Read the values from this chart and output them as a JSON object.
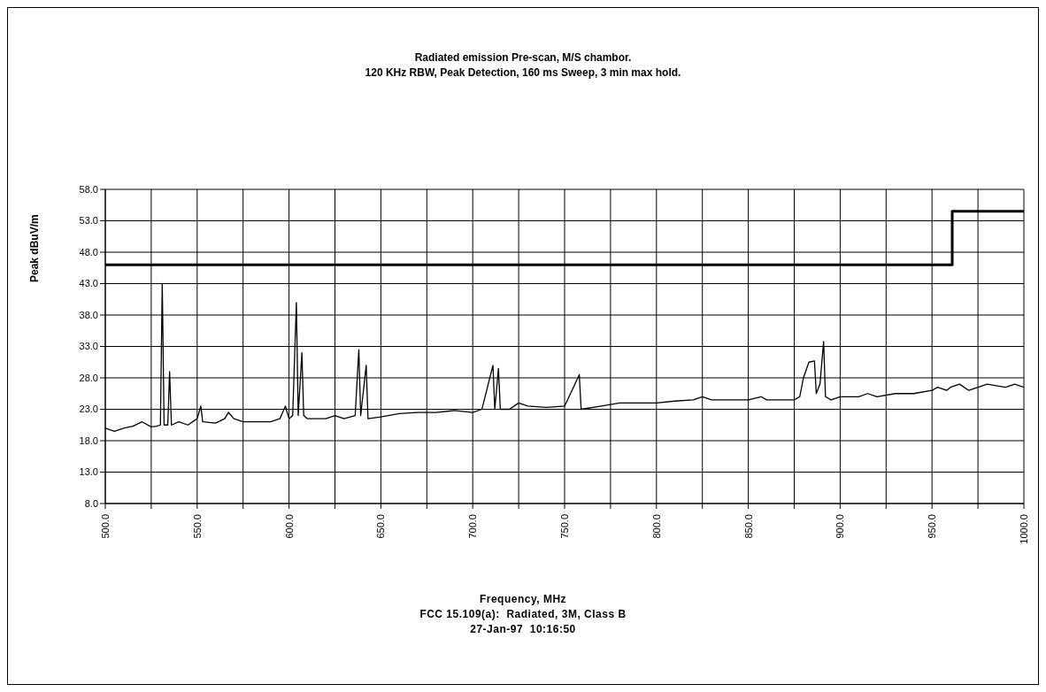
{
  "chart_data": {
    "type": "line",
    "title": "Radiated emission Pre-scan, M/S chambor.",
    "subtitle": "120 KHz RBW, Peak Detection, 160 ms Sweep, 3 min max hold.",
    "xlabel": "Frequency, MHz",
    "ylabel": "Peak dBuV/m",
    "annotations": [
      "FCC 15.109(a):  Radiated, 3M, Class B",
      "27-Jan-97  10:16:50"
    ],
    "xlim": [
      500,
      1000
    ],
    "xticks": [
      {
        "value": 500,
        "label": "500.0"
      },
      {
        "value": 525,
        "label": null
      },
      {
        "value": 550,
        "label": "550.0"
      },
      {
        "value": 575,
        "label": null
      },
      {
        "value": 600,
        "label": "600.0"
      },
      {
        "value": 625,
        "label": null
      },
      {
        "value": 650,
        "label": "650.0"
      },
      {
        "value": 675,
        "label": null
      },
      {
        "value": 700,
        "label": "700.0"
      },
      {
        "value": 725,
        "label": null
      },
      {
        "value": 750,
        "label": "750.0"
      },
      {
        "value": 775,
        "label": null
      },
      {
        "value": 800,
        "label": "800.0"
      },
      {
        "value": 825,
        "label": null
      },
      {
        "value": 850,
        "label": "850.0"
      },
      {
        "value": 875,
        "label": null
      },
      {
        "value": 900,
        "label": "900.0"
      },
      {
        "value": 925,
        "label": null
      },
      {
        "value": 950,
        "label": "950.0"
      },
      {
        "value": 975,
        "label": null
      },
      {
        "value": 1000,
        "label": "1000.0"
      }
    ],
    "ylim": [
      8,
      58
    ],
    "yticks": [
      {
        "value": 8,
        "label": "8.0"
      },
      {
        "value": 13,
        "label": "13.0"
      },
      {
        "value": 18,
        "label": "18.0"
      },
      {
        "value": 23,
        "label": "23.0"
      },
      {
        "value": 28,
        "label": "28.0"
      },
      {
        "value": 33,
        "label": "33.0"
      },
      {
        "value": 38,
        "label": "38.0"
      },
      {
        "value": 43,
        "label": "43.0"
      },
      {
        "value": 48,
        "label": "48.0"
      },
      {
        "value": 53,
        "label": "53.0"
      },
      {
        "value": 58,
        "label": "58.0"
      }
    ],
    "grid": true,
    "marker": "none",
    "line_style": "solid",
    "series": [
      {
        "color": "#000000",
        "x": [
          500,
          505,
          510,
          515,
          520,
          525,
          528,
          530,
          531,
          532,
          534,
          535,
          536,
          540,
          545,
          550,
          552,
          553,
          560,
          565,
          567,
          570,
          575,
          580,
          590,
          595,
          598,
          600,
          602,
          604,
          605,
          607,
          608,
          610,
          620,
          625,
          630,
          636,
          638,
          639,
          642,
          643,
          650,
          660,
          670,
          680,
          690,
          700,
          705,
          711,
          712,
          714,
          715,
          720,
          725,
          730,
          740,
          750,
          758,
          759,
          770,
          780,
          790,
          800,
          810,
          820,
          825,
          830,
          840,
          850,
          857,
          860,
          865,
          875,
          878,
          880,
          883,
          886,
          887,
          889,
          891,
          892,
          895,
          900,
          910,
          915,
          920,
          930,
          940,
          950,
          953,
          958,
          960,
          965,
          970,
          975,
          980,
          990,
          995,
          1000
        ],
        "values": [
          20,
          19.5,
          20,
          20.3,
          21,
          20.2,
          20.3,
          20.5,
          43,
          20.5,
          20.5,
          29,
          20.5,
          21,
          20.5,
          21.5,
          23.5,
          21,
          20.8,
          21.5,
          22.5,
          21.5,
          21,
          21,
          21,
          21.5,
          23.5,
          21.5,
          22,
          40,
          22,
          32,
          22,
          21.5,
          21.5,
          22,
          21.5,
          22,
          32.5,
          22,
          30,
          21.5,
          21.8,
          22.3,
          22.5,
          22.5,
          22.8,
          22.5,
          23,
          30,
          23,
          29.5,
          23,
          23,
          24,
          23.5,
          23.3,
          23.5,
          28.5,
          23,
          23.5,
          24,
          24,
          24,
          24.3,
          24.5,
          25,
          24.5,
          24.5,
          24.5,
          25,
          24.5,
          24.5,
          24.5,
          25,
          28,
          30.5,
          30.7,
          25.5,
          27,
          33.8,
          25,
          24.5,
          25,
          25,
          25.5,
          25,
          25.5,
          25.5,
          26,
          26.5,
          26,
          26.5,
          27,
          26,
          26.5,
          27,
          26.5,
          27,
          26.5
        ]
      },
      {
        "color": "#000000",
        "x": [
          500,
          961,
          961,
          1000
        ],
        "values": [
          46,
          46,
          54.5,
          54.5
        ]
      }
    ]
  }
}
